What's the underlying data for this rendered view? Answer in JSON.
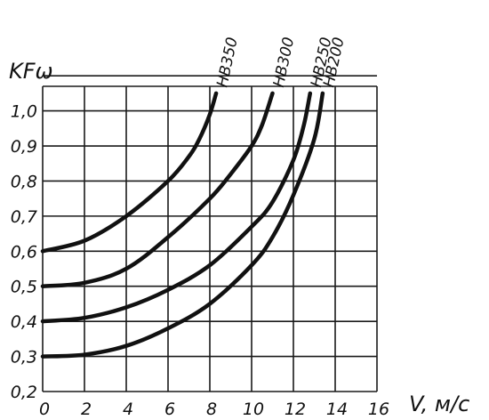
{
  "chart_data": {
    "type": "line",
    "xlabel": "V, м/с",
    "ylabel": "KFω",
    "xlim": [
      0,
      16
    ],
    "ylim": [
      0.2,
      1.07
    ],
    "x_ticks": [
      "0",
      "2",
      "4",
      "6",
      "8",
      "10",
      "12",
      "14",
      "16"
    ],
    "y_ticks": [
      "0,2",
      "0,3",
      "0,4",
      "0,5",
      "0,6",
      "0,7",
      "0,8",
      "0,9",
      "1,0"
    ],
    "grid": true,
    "series": [
      {
        "name": "HB350",
        "x": [
          0,
          2,
          4,
          6,
          7,
          7.5,
          8,
          8.3
        ],
        "y": [
          0.6,
          0.63,
          0.7,
          0.8,
          0.87,
          0.92,
          0.99,
          1.05
        ]
      },
      {
        "name": "HB300",
        "x": [
          0,
          2,
          4,
          6,
          8,
          9,
          10,
          10.5,
          11
        ],
        "y": [
          0.5,
          0.51,
          0.55,
          0.64,
          0.75,
          0.82,
          0.9,
          0.96,
          1.05
        ]
      },
      {
        "name": "HB250",
        "x": [
          0,
          2,
          4,
          6,
          8,
          10,
          11,
          12,
          12.5,
          12.8
        ],
        "y": [
          0.4,
          0.41,
          0.44,
          0.49,
          0.56,
          0.67,
          0.74,
          0.86,
          0.96,
          1.05
        ]
      },
      {
        "name": "HB200",
        "x": [
          0,
          2,
          4,
          6,
          8,
          10,
          11,
          12,
          13,
          13.4
        ],
        "y": [
          0.3,
          0.305,
          0.33,
          0.38,
          0.45,
          0.56,
          0.64,
          0.76,
          0.92,
          1.05
        ]
      }
    ]
  }
}
